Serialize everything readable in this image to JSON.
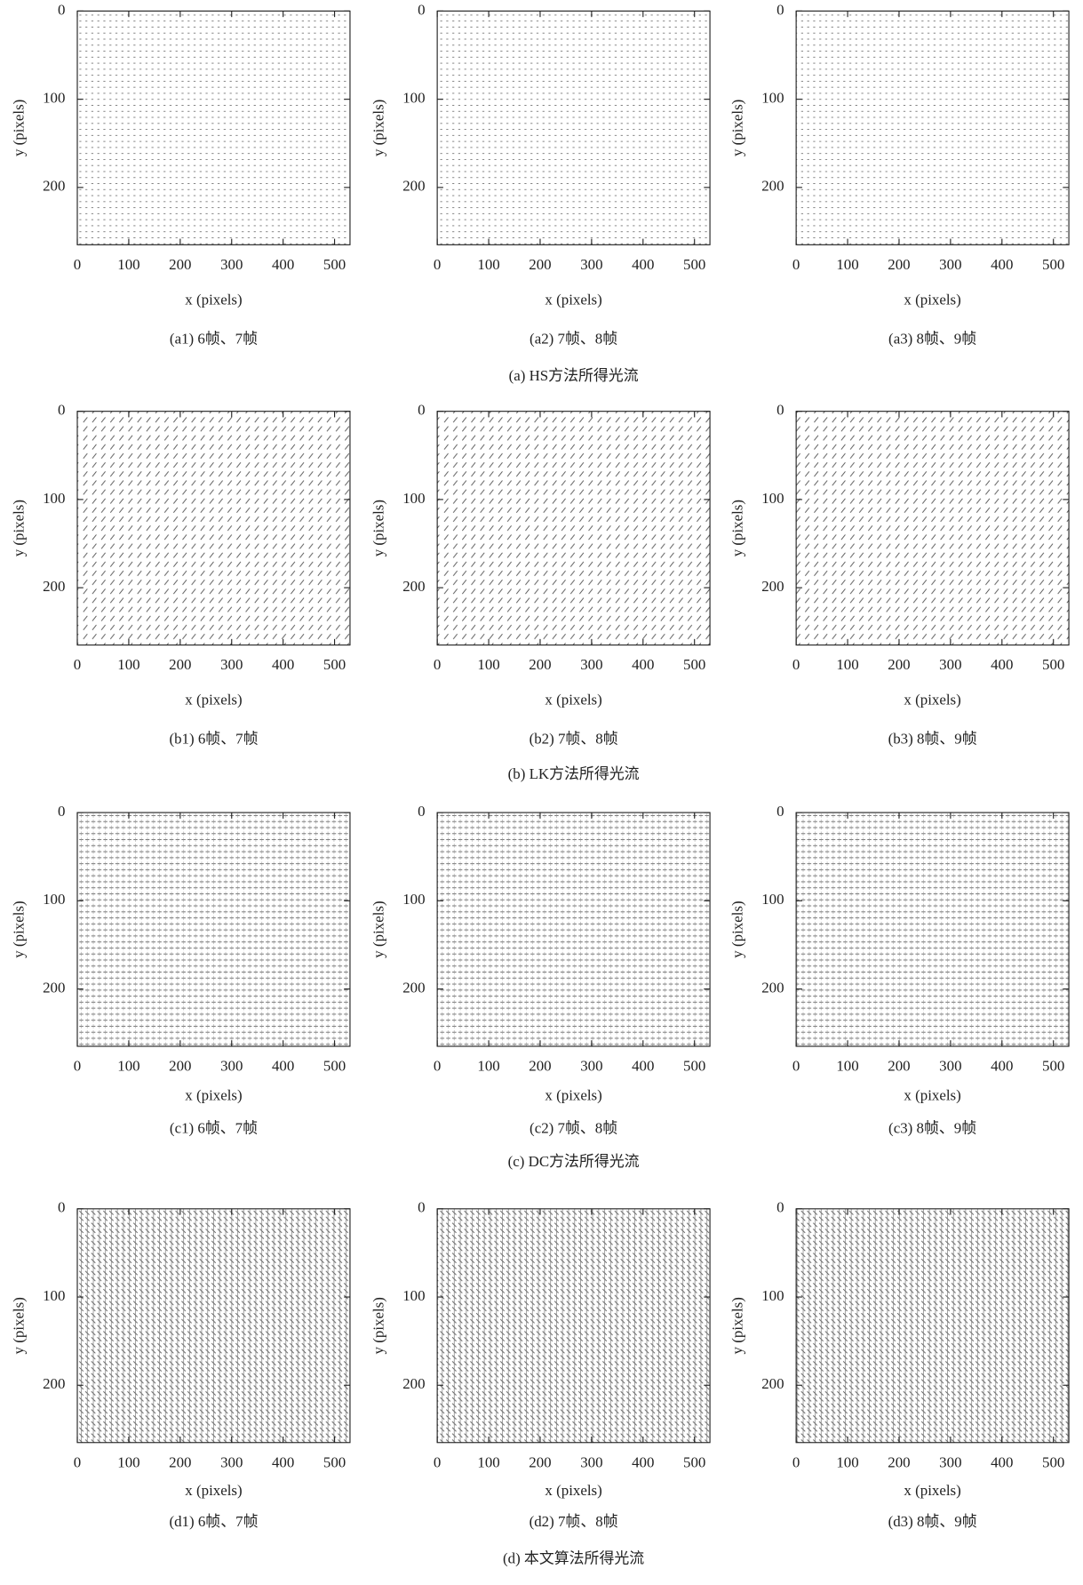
{
  "chart_data": [
    {
      "type": "quiver",
      "caption": "(a1) 6帧、7帧",
      "xlabel": "x (pixels)",
      "ylabel": "y (pixels)",
      "xlim": [
        0,
        530
      ],
      "ylim": [
        0,
        265
      ],
      "y_inverted": true,
      "xticks": [
        0,
        100,
        200,
        300,
        400,
        500
      ],
      "yticks": [
        0,
        100,
        200
      ]
    },
    {
      "type": "quiver",
      "caption": "(a2) 7帧、8帧",
      "xlabel": "x (pixels)",
      "ylabel": "y (pixels)",
      "xlim": [
        0,
        530
      ],
      "ylim": [
        0,
        265
      ],
      "y_inverted": true,
      "xticks": [
        0,
        100,
        200,
        300,
        400,
        500
      ],
      "yticks": [
        0,
        100,
        200
      ]
    },
    {
      "type": "quiver",
      "caption": "(a3) 8帧、9帧",
      "xlabel": "x (pixels)",
      "ylabel": "y (pixels)",
      "xlim": [
        0,
        530
      ],
      "ylim": [
        0,
        265
      ],
      "y_inverted": true,
      "xticks": [
        0,
        100,
        200,
        300,
        400,
        500
      ],
      "yticks": [
        0,
        100,
        200
      ]
    },
    {
      "type": "quiver",
      "caption": "(b1) 6帧、7帧",
      "xlabel": "x (pixels)",
      "ylabel": "y (pixels)",
      "xlim": [
        0,
        530
      ],
      "ylim": [
        0,
        265
      ],
      "y_inverted": true,
      "xticks": [
        0,
        100,
        200,
        300,
        400,
        500
      ],
      "yticks": [
        0,
        100,
        200
      ]
    },
    {
      "type": "quiver",
      "caption": "(b2) 7帧、8帧",
      "xlabel": "x (pixels)",
      "ylabel": "y (pixels)",
      "xlim": [
        0,
        530
      ],
      "ylim": [
        0,
        265
      ],
      "y_inverted": true,
      "xticks": [
        0,
        100,
        200,
        300,
        400,
        500
      ],
      "yticks": [
        0,
        100,
        200
      ]
    },
    {
      "type": "quiver",
      "caption": "(b3) 8帧、9帧",
      "xlabel": "x (pixels)",
      "ylabel": "y (pixels)",
      "xlim": [
        0,
        530
      ],
      "ylim": [
        0,
        265
      ],
      "y_inverted": true,
      "xticks": [
        0,
        100,
        200,
        300,
        400,
        500
      ],
      "yticks": [
        0,
        100,
        200
      ]
    },
    {
      "type": "quiver",
      "caption": "(c1) 6帧、7帧",
      "xlabel": "x (pixels)",
      "ylabel": "y (pixels)",
      "xlim": [
        0,
        530
      ],
      "ylim": [
        0,
        265
      ],
      "y_inverted": true,
      "xticks": [
        0,
        100,
        200,
        300,
        400,
        500
      ],
      "yticks": [
        0,
        100,
        200
      ]
    },
    {
      "type": "quiver",
      "caption": "(c2) 7帧、8帧",
      "xlabel": "x (pixels)",
      "ylabel": "y (pixels)",
      "xlim": [
        0,
        530
      ],
      "ylim": [
        0,
        265
      ],
      "y_inverted": true,
      "xticks": [
        0,
        100,
        200,
        300,
        400,
        500
      ],
      "yticks": [
        0,
        100,
        200
      ]
    },
    {
      "type": "quiver",
      "caption": "(c3) 8帧、9帧",
      "xlabel": "x (pixels)",
      "ylabel": "y (pixels)",
      "xlim": [
        0,
        530
      ],
      "ylim": [
        0,
        265
      ],
      "y_inverted": true,
      "xticks": [
        0,
        100,
        200,
        300,
        400,
        500
      ],
      "yticks": [
        0,
        100,
        200
      ]
    },
    {
      "type": "quiver",
      "caption": "(d1) 6帧、7帧",
      "xlabel": "x (pixels)",
      "ylabel": "y (pixels)",
      "xlim": [
        0,
        530
      ],
      "ylim": [
        0,
        265
      ],
      "y_inverted": true,
      "xticks": [
        0,
        100,
        200,
        300,
        400,
        500
      ],
      "yticks": [
        0,
        100,
        200
      ]
    },
    {
      "type": "quiver",
      "caption": "(d2) 7帧、8帧",
      "xlabel": "x (pixels)",
      "ylabel": "y (pixels)",
      "xlim": [
        0,
        530
      ],
      "ylim": [
        0,
        265
      ],
      "y_inverted": true,
      "xticks": [
        0,
        100,
        200,
        300,
        400,
        500
      ],
      "yticks": [
        0,
        100,
        200
      ]
    },
    {
      "type": "quiver",
      "caption": "(d3) 8帧、9帧",
      "xlabel": "x (pixels)",
      "ylabel": "y (pixels)",
      "xlim": [
        0,
        530
      ],
      "ylim": [
        0,
        265
      ],
      "y_inverted": true,
      "xticks": [
        0,
        100,
        200,
        300,
        400,
        500
      ],
      "yticks": [
        0,
        100,
        200
      ]
    }
  ],
  "group_captions": [
    "(a) HS方法所得光流",
    "(b) LK方法所得光流",
    "(c) DC方法所得光流",
    "(d) 本文算法所得光流"
  ]
}
